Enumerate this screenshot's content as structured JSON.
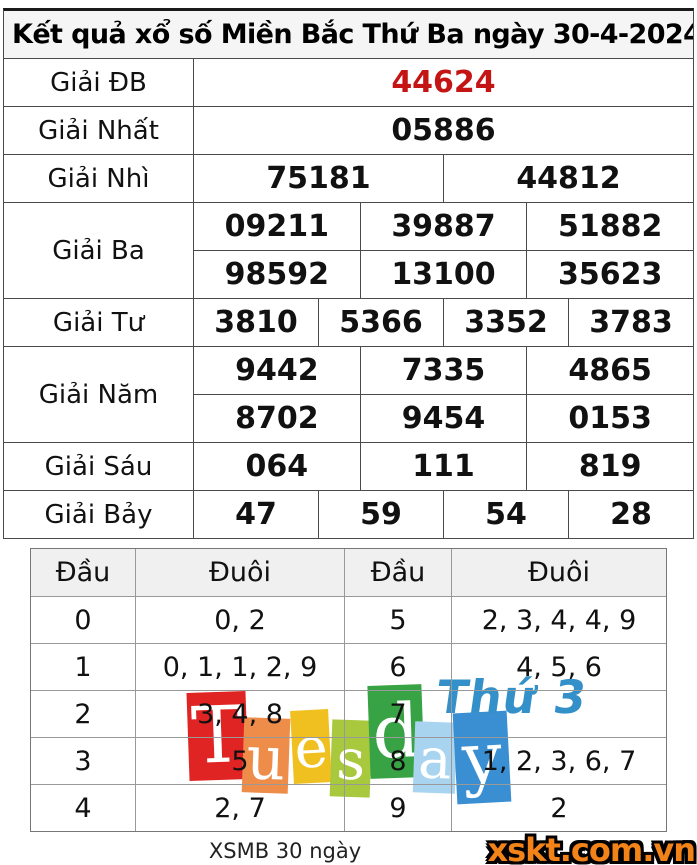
{
  "title": "Kết quả xổ số Miền Bắc Thứ Ba ngày 30-4-2024",
  "colors": {
    "special_prize_red": "#c41414",
    "thu3_blue": "#3390c8",
    "logo_orange": "#f28318"
  },
  "prize_table": {
    "rows": [
      {
        "label": "Giải ĐB",
        "groups": [
          [
            "44624"
          ]
        ]
      },
      {
        "label": "Giải Nhất",
        "groups": [
          [
            "05886"
          ]
        ]
      },
      {
        "label": "Giải Nhì",
        "groups": [
          [
            "75181",
            "44812"
          ]
        ]
      },
      {
        "label": "Giải Ba",
        "groups": [
          [
            "09211",
            "39887",
            "51882"
          ],
          [
            "98592",
            "13100",
            "35623"
          ]
        ]
      },
      {
        "label": "Giải Tư",
        "groups": [
          [
            "3810",
            "5366",
            "3352",
            "3783"
          ]
        ]
      },
      {
        "label": "Giải Năm",
        "groups": [
          [
            "9442",
            "7335",
            "4865"
          ],
          [
            "8702",
            "9454",
            "0153"
          ]
        ]
      },
      {
        "label": "Giải Sáu",
        "groups": [
          [
            "064",
            "111",
            "819"
          ]
        ]
      },
      {
        "label": "Giải Bảy",
        "groups": [
          [
            "47",
            "59",
            "54",
            "28"
          ]
        ]
      }
    ]
  },
  "head_tail_table": {
    "headers": [
      "Đầu",
      "Đuôi",
      "Đầu",
      "Đuôi"
    ],
    "rows": [
      [
        "0",
        "0, 2",
        "5",
        "2, 3, 4, 4, 9"
      ],
      [
        "1",
        "0, 1, 1, 2, 9",
        "6",
        "4, 5, 6"
      ],
      [
        "2",
        "3, 4, 8",
        "7",
        ""
      ],
      [
        "3",
        "5",
        "8",
        "1, 2, 3, 6, 7"
      ],
      [
        "4",
        "2, 7",
        "9",
        "2"
      ]
    ]
  },
  "watermark": {
    "word": "Tuesday",
    "letters": [
      {
        "char": "T",
        "color": "#e02424"
      },
      {
        "char": "u",
        "color": "#ee8c4a"
      },
      {
        "char": "e",
        "color": "#f0c020"
      },
      {
        "char": "s",
        "color": "#a8c83e"
      },
      {
        "char": "d",
        "color": "#38a344"
      },
      {
        "char": "a",
        "color": "#a8d4f0"
      },
      {
        "char": "y",
        "color": "#3a8ed2"
      }
    ],
    "day_label": "Thứ 3"
  },
  "footer": {
    "note": "XSMB 30 ngày",
    "site": "xskt.com.vn"
  }
}
